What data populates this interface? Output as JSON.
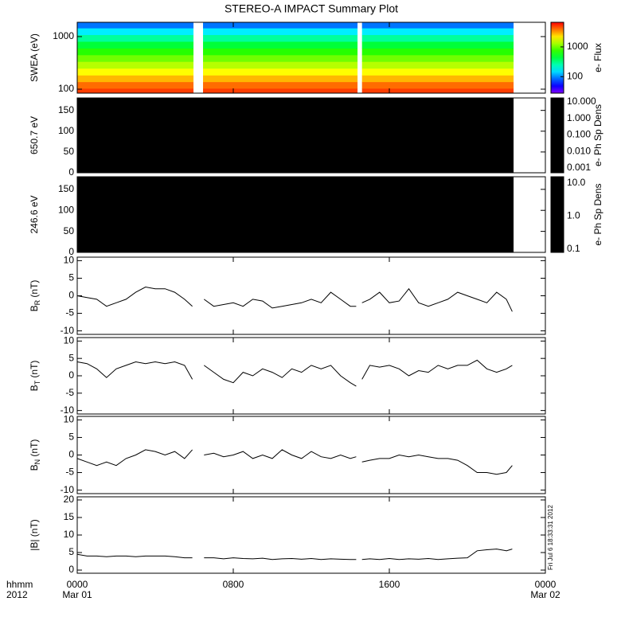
{
  "title": "STEREO-A IMPACT Summary Plot",
  "time_label": "hhmm",
  "year_label": "2012",
  "stamp": "Fri Jul 6 18:33:31 2012",
  "chart_data": [
    {
      "type": "spectrogram",
      "ylabel": "SWEA (eV)",
      "ylog": true,
      "ylim": [
        84,
        1870
      ],
      "yticks": [
        100,
        1000
      ],
      "xlim": [
        0,
        24
      ],
      "segments": [
        [
          0,
          5.96
        ],
        [
          6.45,
          14.37
        ],
        [
          14.6,
          22.37
        ]
      ],
      "energies": [
        90,
        120,
        160,
        215,
        290,
        390,
        520,
        700,
        940,
        1260,
        1690
      ],
      "flux": [
        5000,
        4000,
        2800,
        2000,
        1400,
        1000,
        700,
        450,
        280,
        160,
        90
      ],
      "colorbar": {
        "label": "e- Flux",
        "log": true,
        "lim": [
          28,
          6700
        ],
        "ticks": [
          100,
          1000
        ]
      }
    },
    {
      "type": "counts",
      "ylabel": "650.7 eV",
      "ylim": [
        0,
        180
      ],
      "yticks": [
        0,
        50,
        100,
        150
      ],
      "xlim": [
        0,
        24
      ],
      "segments": [
        [
          0,
          22.37
        ]
      ],
      "color": "#000000",
      "colorbar": {
        "label": "e- Ph Sp Dens",
        "log": true,
        "lim": [
          0.00051,
          17.4
        ],
        "ticks": [
          {
            "value": 10,
            "label": "10.000"
          },
          {
            "value": 1,
            "label": "1.000"
          },
          {
            "value": 0.1,
            "label": "0.100"
          },
          {
            "value": 0.01,
            "label": "0.010"
          },
          0.001
        ]
      }
    },
    {
      "type": "counts",
      "ylabel": "246.6 eV",
      "ylim": [
        0,
        180
      ],
      "yticks": [
        0,
        50,
        100,
        150
      ],
      "xlim": [
        0,
        24
      ],
      "segments": [
        [
          0,
          22.37
        ]
      ],
      "color": "#000000",
      "colorbar": {
        "label": "e- Ph Sp Dens",
        "log": true,
        "lim": [
          0.08,
          15.6
        ],
        "ticks": [
          {
            "value": 10,
            "label": "10.0"
          },
          {
            "value": 1,
            "label": "1.0"
          },
          0.1
        ]
      }
    },
    {
      "type": "line",
      "ylabel": {
        "main": "B",
        "sub": "R",
        "unit": " (nT)"
      },
      "ylim": [
        -11,
        11
      ],
      "yticks": [
        -10,
        -5,
        0,
        5,
        10
      ],
      "xlim": [
        0,
        24
      ],
      "color": "#000000",
      "x": [
        0,
        0.5,
        1,
        1.5,
        2,
        2.5,
        3,
        3.5,
        4,
        4.5,
        5,
        5.5,
        5.9,
        6.2,
        6.5,
        7,
        7.5,
        8,
        8.5,
        9,
        9.5,
        10,
        10.5,
        11,
        11.5,
        12,
        12.5,
        13,
        13.5,
        14,
        14.3,
        14.45,
        14.6,
        15,
        15.5,
        16,
        16.5,
        17,
        17.5,
        18,
        18.5,
        19,
        19.5,
        20,
        20.5,
        21,
        21.5,
        22,
        22.3
      ],
      "values": [
        0,
        -0.5,
        -1,
        -3,
        -2,
        -1,
        1,
        2.5,
        2,
        2,
        1,
        -1,
        -3,
        null,
        -1,
        -3,
        -2.5,
        -2,
        -3,
        -1,
        -1.5,
        -3.5,
        -3,
        -2.5,
        -2,
        -1,
        -2,
        1,
        -1,
        -3,
        -3,
        null,
        -2,
        -1,
        1,
        -2,
        -1.5,
        2,
        -2,
        -3,
        -2,
        -1,
        1,
        0,
        -1,
        -2,
        1,
        -1,
        -4.5
      ]
    },
    {
      "type": "line",
      "ylabel": {
        "main": "B",
        "sub": "T",
        "unit": " (nT)"
      },
      "ylim": [
        -11,
        11
      ],
      "yticks": [
        -10,
        -5,
        0,
        5,
        10
      ],
      "xlim": [
        0,
        24
      ],
      "color": "#000000",
      "x": [
        0,
        0.5,
        1,
        1.5,
        2,
        2.5,
        3,
        3.5,
        4,
        4.5,
        5,
        5.5,
        5.9,
        6.2,
        6.5,
        7,
        7.5,
        8,
        8.5,
        9,
        9.5,
        10,
        10.5,
        11,
        11.5,
        12,
        12.5,
        13,
        13.5,
        14,
        14.3,
        14.45,
        14.6,
        15,
        15.5,
        16,
        16.5,
        17,
        17.5,
        18,
        18.5,
        19,
        19.5,
        20,
        20.5,
        21,
        21.5,
        22,
        22.3
      ],
      "values": [
        4,
        3.5,
        2,
        -0.5,
        2,
        3,
        4,
        3.5,
        4,
        3.5,
        4,
        3,
        -1,
        null,
        3,
        1,
        -1,
        -2,
        1,
        0,
        2,
        1,
        -0.5,
        2,
        1,
        3,
        2,
        3,
        0,
        -2,
        -3,
        null,
        -1,
        3,
        2.5,
        3,
        2,
        0,
        1.5,
        1,
        3,
        2,
        3,
        3,
        4.5,
        2,
        1,
        2,
        3
      ]
    },
    {
      "type": "line",
      "ylabel": {
        "main": "B",
        "sub": "N",
        "unit": " (nT)"
      },
      "ylim": [
        -11,
        11
      ],
      "yticks": [
        -10,
        -5,
        0,
        5,
        10
      ],
      "xlim": [
        0,
        24
      ],
      "color": "#000000",
      "x": [
        0,
        0.5,
        1,
        1.5,
        2,
        2.5,
        3,
        3.5,
        4,
        4.5,
        5,
        5.5,
        5.9,
        6.2,
        6.5,
        7,
        7.5,
        8,
        8.5,
        9,
        9.5,
        10,
        10.5,
        11,
        11.5,
        12,
        12.5,
        13,
        13.5,
        14,
        14.3,
        14.45,
        14.6,
        15,
        15.5,
        16,
        16.5,
        17,
        17.5,
        18,
        18.5,
        19,
        19.5,
        20,
        20.5,
        21,
        21.5,
        22,
        22.3
      ],
      "values": [
        -1,
        -2,
        -3,
        -2,
        -3,
        -1,
        0,
        1.5,
        1,
        0,
        1,
        -1,
        1.5,
        null,
        0,
        0.5,
        -0.5,
        0,
        1,
        -1,
        0,
        -1,
        1.5,
        0,
        -1,
        1,
        -0.5,
        -1,
        0,
        -1,
        -0.5,
        null,
        -2,
        -1.5,
        -1,
        -1,
        0,
        -0.5,
        0,
        -0.5,
        -1,
        -1,
        -1.5,
        -3,
        -5,
        -5,
        -5.5,
        -5,
        -3
      ]
    },
    {
      "type": "line",
      "ylabel": {
        "main": "|B|",
        "sub": null,
        "unit": " (nT)"
      },
      "ylim": [
        -0.9,
        20.9
      ],
      "yticks": [
        0,
        5,
        10,
        15,
        20
      ],
      "xlim": [
        0,
        24
      ],
      "color": "#000000",
      "x": [
        0,
        0.5,
        1,
        1.5,
        2,
        2.5,
        3,
        3.5,
        4,
        4.5,
        5,
        5.5,
        5.9,
        6.2,
        6.5,
        7,
        7.5,
        8,
        8.5,
        9,
        9.5,
        10,
        10.5,
        11,
        11.5,
        12,
        12.5,
        13,
        13.5,
        14,
        14.3,
        14.45,
        14.6,
        15,
        15.5,
        16,
        16.5,
        17,
        17.5,
        18,
        18.5,
        19,
        19.5,
        20,
        20.5,
        21,
        21.5,
        22,
        22.3
      ],
      "values": [
        4.5,
        4,
        4,
        3.8,
        4,
        4,
        3.8,
        4,
        4,
        4,
        3.8,
        3.5,
        3.5,
        null,
        3.5,
        3.5,
        3.2,
        3.5,
        3.3,
        3.2,
        3.4,
        3,
        3.2,
        3.3,
        3.1,
        3.3,
        3,
        3.2,
        3.1,
        3,
        3,
        null,
        3,
        3.2,
        3,
        3.3,
        3,
        3.2,
        3.1,
        3.3,
        3,
        3.2,
        3.4,
        3.5,
        5.5,
        5.8,
        6,
        5.5,
        6
      ],
      "xticks": [
        {
          "value": 0,
          "label": "0000"
        },
        {
          "value": 8,
          "label": "0800"
        },
        {
          "value": 16,
          "label": "1600"
        },
        {
          "value": 24,
          "label": "0000"
        }
      ],
      "date_labels": [
        {
          "value": 0,
          "label": "Mar 01"
        },
        {
          "value": 24,
          "label": "Mar 02"
        }
      ]
    }
  ]
}
